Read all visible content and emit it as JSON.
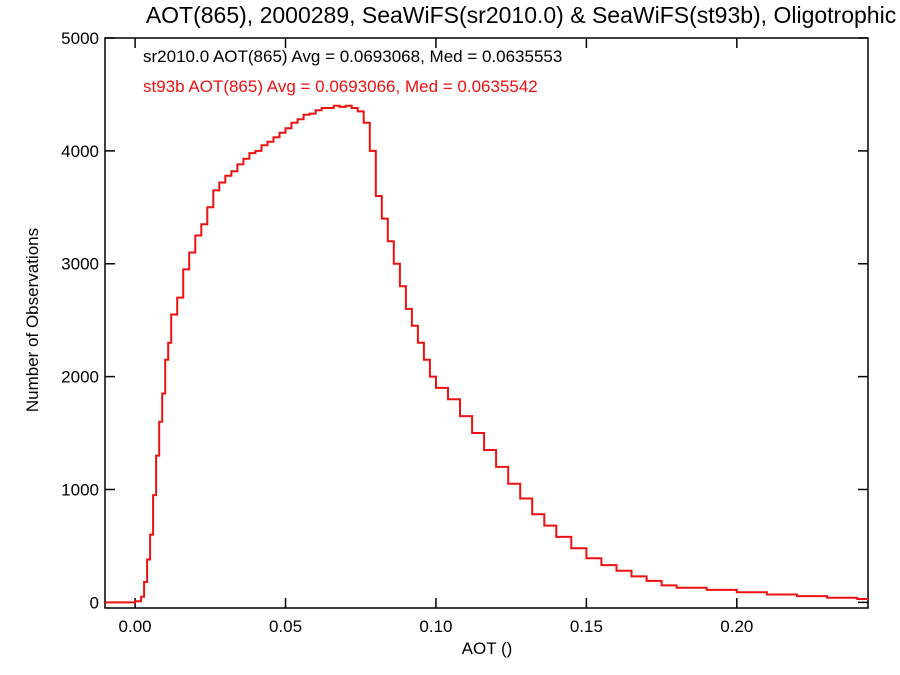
{
  "chart_data": {
    "type": "line",
    "style": "step-histogram",
    "title": "AOT(865), 2000289, SeaWiFS(sr2010.0) & SeaWiFS(st93b), Oligotrophic",
    "xlabel": "AOT ()",
    "ylabel": "Number of Observations",
    "xlim": [
      -0.01,
      0.2436
    ],
    "ylim": [
      -50,
      5000
    ],
    "xticks": [
      0.0,
      0.05,
      0.1,
      0.15,
      0.2
    ],
    "xtick_labels": [
      "0.00",
      "0.05",
      "0.10",
      "0.15",
      "0.20"
    ],
    "yticks": [
      0,
      1000,
      2000,
      3000,
      4000,
      5000
    ],
    "ytick_labels": [
      "0",
      "1000",
      "2000",
      "3000",
      "4000",
      "5000"
    ],
    "annotations": [
      {
        "text": "sr2010.0 AOT(865) Avg = 0.0693068, Med = 0.0635553",
        "color": "#000000"
      },
      {
        "text": "st93b AOT(865) Avg = 0.0693066, Med = 0.0635542",
        "color": "#ee1111"
      }
    ],
    "x": [
      -0.01,
      0.0,
      0.002,
      0.003,
      0.004,
      0.005,
      0.006,
      0.007,
      0.008,
      0.009,
      0.01,
      0.011,
      0.012,
      0.014,
      0.016,
      0.018,
      0.02,
      0.022,
      0.024,
      0.026,
      0.028,
      0.03,
      0.032,
      0.034,
      0.036,
      0.038,
      0.04,
      0.042,
      0.044,
      0.046,
      0.048,
      0.05,
      0.052,
      0.054,
      0.056,
      0.058,
      0.06,
      0.062,
      0.064,
      0.066,
      0.068,
      0.07,
      0.072,
      0.074,
      0.076,
      0.078,
      0.08,
      0.082,
      0.084,
      0.086,
      0.088,
      0.09,
      0.092,
      0.094,
      0.096,
      0.098,
      0.1,
      0.104,
      0.108,
      0.112,
      0.116,
      0.12,
      0.124,
      0.128,
      0.132,
      0.136,
      0.14,
      0.145,
      0.15,
      0.155,
      0.16,
      0.165,
      0.17,
      0.175,
      0.18,
      0.19,
      0.2,
      0.21,
      0.22,
      0.23,
      0.24,
      0.2436
    ],
    "series": [
      {
        "color": "#ee1111",
        "values": [
          0,
          10,
          50,
          180,
          380,
          600,
          950,
          1300,
          1600,
          1850,
          2150,
          2300,
          2550,
          2700,
          2950,
          3100,
          3250,
          3350,
          3500,
          3650,
          3720,
          3780,
          3820,
          3880,
          3930,
          3980,
          4000,
          4050,
          4080,
          4120,
          4160,
          4200,
          4250,
          4280,
          4320,
          4330,
          4360,
          4380,
          4380,
          4400,
          4390,
          4400,
          4380,
          4350,
          4250,
          4000,
          3600,
          3400,
          3200,
          3000,
          2800,
          2600,
          2450,
          2300,
          2150,
          2000,
          1900,
          1800,
          1650,
          1500,
          1350,
          1200,
          1050,
          920,
          780,
          680,
          580,
          480,
          390,
          330,
          280,
          230,
          190,
          150,
          130,
          110,
          90,
          70,
          55,
          40,
          30,
          25
        ]
      }
    ]
  }
}
